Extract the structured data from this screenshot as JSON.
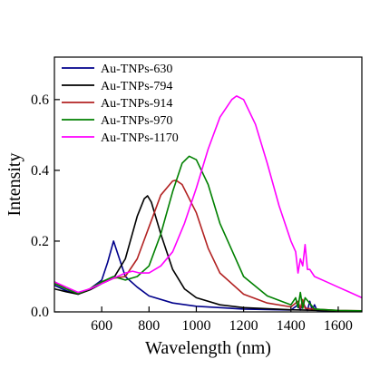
{
  "chart_data": {
    "type": "line",
    "xlabel": "Wavelength (nm)",
    "ylabel": "Intensity",
    "xlim": [
      400,
      1700
    ],
    "ylim": [
      0,
      0.72
    ],
    "xticks": [
      600,
      800,
      1000,
      1200,
      1400,
      1600
    ],
    "xtick_labels": [
      "600",
      "800",
      "1000",
      "1200",
      "1400",
      "1600"
    ],
    "yticks": [
      0.0,
      0.2,
      0.4,
      0.6
    ],
    "ytick_labels": [
      "0.0",
      "0.2",
      "0.4",
      "0.6"
    ],
    "grid": false,
    "legend_position": "top-left",
    "series": [
      {
        "name": "Au-TNPs-630",
        "color": "#00008B",
        "x": [
          400,
          450,
          500,
          550,
          600,
          625,
          650,
          675,
          700,
          750,
          800,
          900,
          1000,
          1200,
          1400,
          1430,
          1440,
          1450,
          1470,
          1480,
          1490,
          1500,
          1510,
          1550,
          1600,
          1700
        ],
        "y": [
          0.075,
          0.06,
          0.05,
          0.065,
          0.09,
          0.14,
          0.2,
          0.15,
          0.1,
          0.07,
          0.045,
          0.025,
          0.016,
          0.008,
          0.005,
          0.02,
          0.005,
          0.025,
          0.004,
          0.03,
          0.005,
          0.02,
          0.004,
          0.003,
          0.002,
          0.001
        ]
      },
      {
        "name": "Au-TNPs-794",
        "color": "#000000",
        "x": [
          400,
          450,
          500,
          550,
          600,
          650,
          700,
          750,
          780,
          794,
          810,
          850,
          900,
          950,
          1000,
          1100,
          1200,
          1400,
          1600,
          1700
        ],
        "y": [
          0.065,
          0.057,
          0.05,
          0.062,
          0.08,
          0.095,
          0.15,
          0.27,
          0.32,
          0.328,
          0.31,
          0.22,
          0.12,
          0.065,
          0.04,
          0.02,
          0.012,
          0.006,
          0.003,
          0.002
        ]
      },
      {
        "name": "Au-TNPs-914",
        "color": "#B22222",
        "x": [
          400,
          450,
          500,
          550,
          600,
          650,
          700,
          750,
          800,
          850,
          900,
          914,
          940,
          1000,
          1050,
          1100,
          1200,
          1300,
          1400,
          1430,
          1440,
          1450,
          1460,
          1500,
          1600,
          1700
        ],
        "y": [
          0.085,
          0.065,
          0.052,
          0.065,
          0.085,
          0.095,
          0.1,
          0.15,
          0.24,
          0.33,
          0.37,
          0.372,
          0.36,
          0.28,
          0.18,
          0.11,
          0.05,
          0.025,
          0.014,
          0.03,
          0.01,
          0.035,
          0.01,
          0.008,
          0.004,
          0.003
        ]
      },
      {
        "name": "Au-TNPs-970",
        "color": "#008000",
        "x": [
          400,
          450,
          500,
          550,
          600,
          650,
          700,
          750,
          800,
          850,
          900,
          940,
          970,
          1000,
          1050,
          1100,
          1200,
          1300,
          1400,
          1420,
          1430,
          1440,
          1450,
          1460,
          1500,
          1600,
          1700
        ],
        "y": [
          0.08,
          0.065,
          0.052,
          0.065,
          0.085,
          0.1,
          0.09,
          0.1,
          0.13,
          0.22,
          0.34,
          0.42,
          0.44,
          0.43,
          0.36,
          0.25,
          0.1,
          0.045,
          0.02,
          0.04,
          0.012,
          0.055,
          0.01,
          0.04,
          0.008,
          0.004,
          0.003
        ]
      },
      {
        "name": "Au-TNPs-1170",
        "color": "#FF00FF",
        "x": [
          400,
          450,
          500,
          550,
          600,
          650,
          700,
          730,
          760,
          800,
          850,
          900,
          950,
          1000,
          1050,
          1100,
          1150,
          1170,
          1200,
          1250,
          1300,
          1350,
          1400,
          1420,
          1430,
          1440,
          1450,
          1460,
          1470,
          1480,
          1500,
          1550,
          1600,
          1650,
          1700
        ],
        "y": [
          0.085,
          0.07,
          0.055,
          0.065,
          0.08,
          0.095,
          0.11,
          0.115,
          0.11,
          0.11,
          0.13,
          0.17,
          0.25,
          0.35,
          0.46,
          0.55,
          0.6,
          0.61,
          0.6,
          0.53,
          0.42,
          0.3,
          0.2,
          0.17,
          0.11,
          0.15,
          0.13,
          0.19,
          0.12,
          0.12,
          0.1,
          0.085,
          0.07,
          0.055,
          0.04
        ]
      }
    ]
  }
}
